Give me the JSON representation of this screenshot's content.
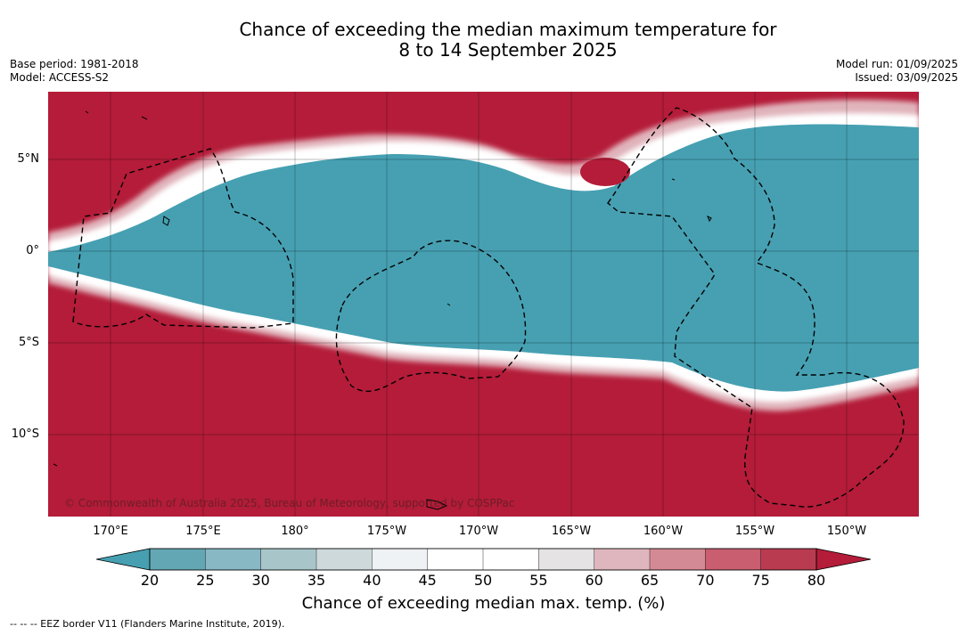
{
  "title": {
    "line1": "Chance of exceeding the median maximum temperature for",
    "line2": "8 to 14 September 2025"
  },
  "meta": {
    "base_period": "Base period: 1981-2018",
    "model": "Model: ACCESS-S2",
    "model_run": "Model run: 01/09/2025",
    "issued": "Issued: 03/09/2025"
  },
  "map": {
    "lat_labels": [
      "5°N",
      "0°",
      "5°S",
      "10°S"
    ],
    "lon_labels": [
      "170°E",
      "175°E",
      "180°",
      "175°W",
      "170°W",
      "165°W",
      "160°W",
      "155°W",
      "150°W"
    ],
    "credit": "© Commonwealth of Australia 2025, Bureau of Meteorology, supported by COSPPac",
    "colors": {
      "high": "#b41c39",
      "low": "#46a0b2",
      "neutral": "#ffffff"
    }
  },
  "colorbar": {
    "ticks": [
      "20",
      "25",
      "30",
      "35",
      "40",
      "45",
      "50",
      "55",
      "60",
      "65",
      "70",
      "75",
      "80"
    ],
    "colors": [
      "#46a0b2",
      "#64a7b4",
      "#87b8c4",
      "#a8c6ca",
      "#ced9dc",
      "#eef2f4",
      "#ffffff",
      "#ffffff",
      "#e5e3e4",
      "#dfb6bd",
      "#d48a94",
      "#c85e6f",
      "#b93b50",
      "#b41c39"
    ],
    "label": "Chance of exceeding median max. temp. (%)"
  },
  "legend_note": "--  --  -- EEZ border V11 (Flanders Marine Institute, 2019)."
}
